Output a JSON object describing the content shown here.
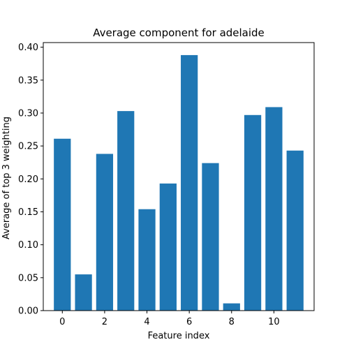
{
  "chart_data": {
    "type": "bar",
    "title": "Average component for adelaide",
    "xlabel": "Feature index",
    "ylabel": "Average of top 3 weighting",
    "x": [
      0,
      1,
      2,
      3,
      4,
      5,
      6,
      7,
      8,
      9,
      10,
      11
    ],
    "values": [
      0.261,
      0.055,
      0.238,
      0.303,
      0.154,
      0.193,
      0.388,
      0.224,
      0.011,
      0.297,
      0.309,
      0.243
    ],
    "xlim": [
      -0.9,
      11.9
    ],
    "ylim": [
      0,
      0.407
    ],
    "xticks": [
      0,
      2,
      4,
      6,
      8,
      10
    ],
    "yticks": [
      0.0,
      0.05,
      0.1,
      0.15,
      0.2,
      0.25,
      0.3,
      0.35,
      0.4
    ],
    "ytick_labels": [
      "0.00",
      "0.05",
      "0.10",
      "0.15",
      "0.20",
      "0.25",
      "0.30",
      "0.35",
      "0.40"
    ],
    "bar_color": "#1f77b4",
    "grid": false,
    "legend": "none"
  }
}
